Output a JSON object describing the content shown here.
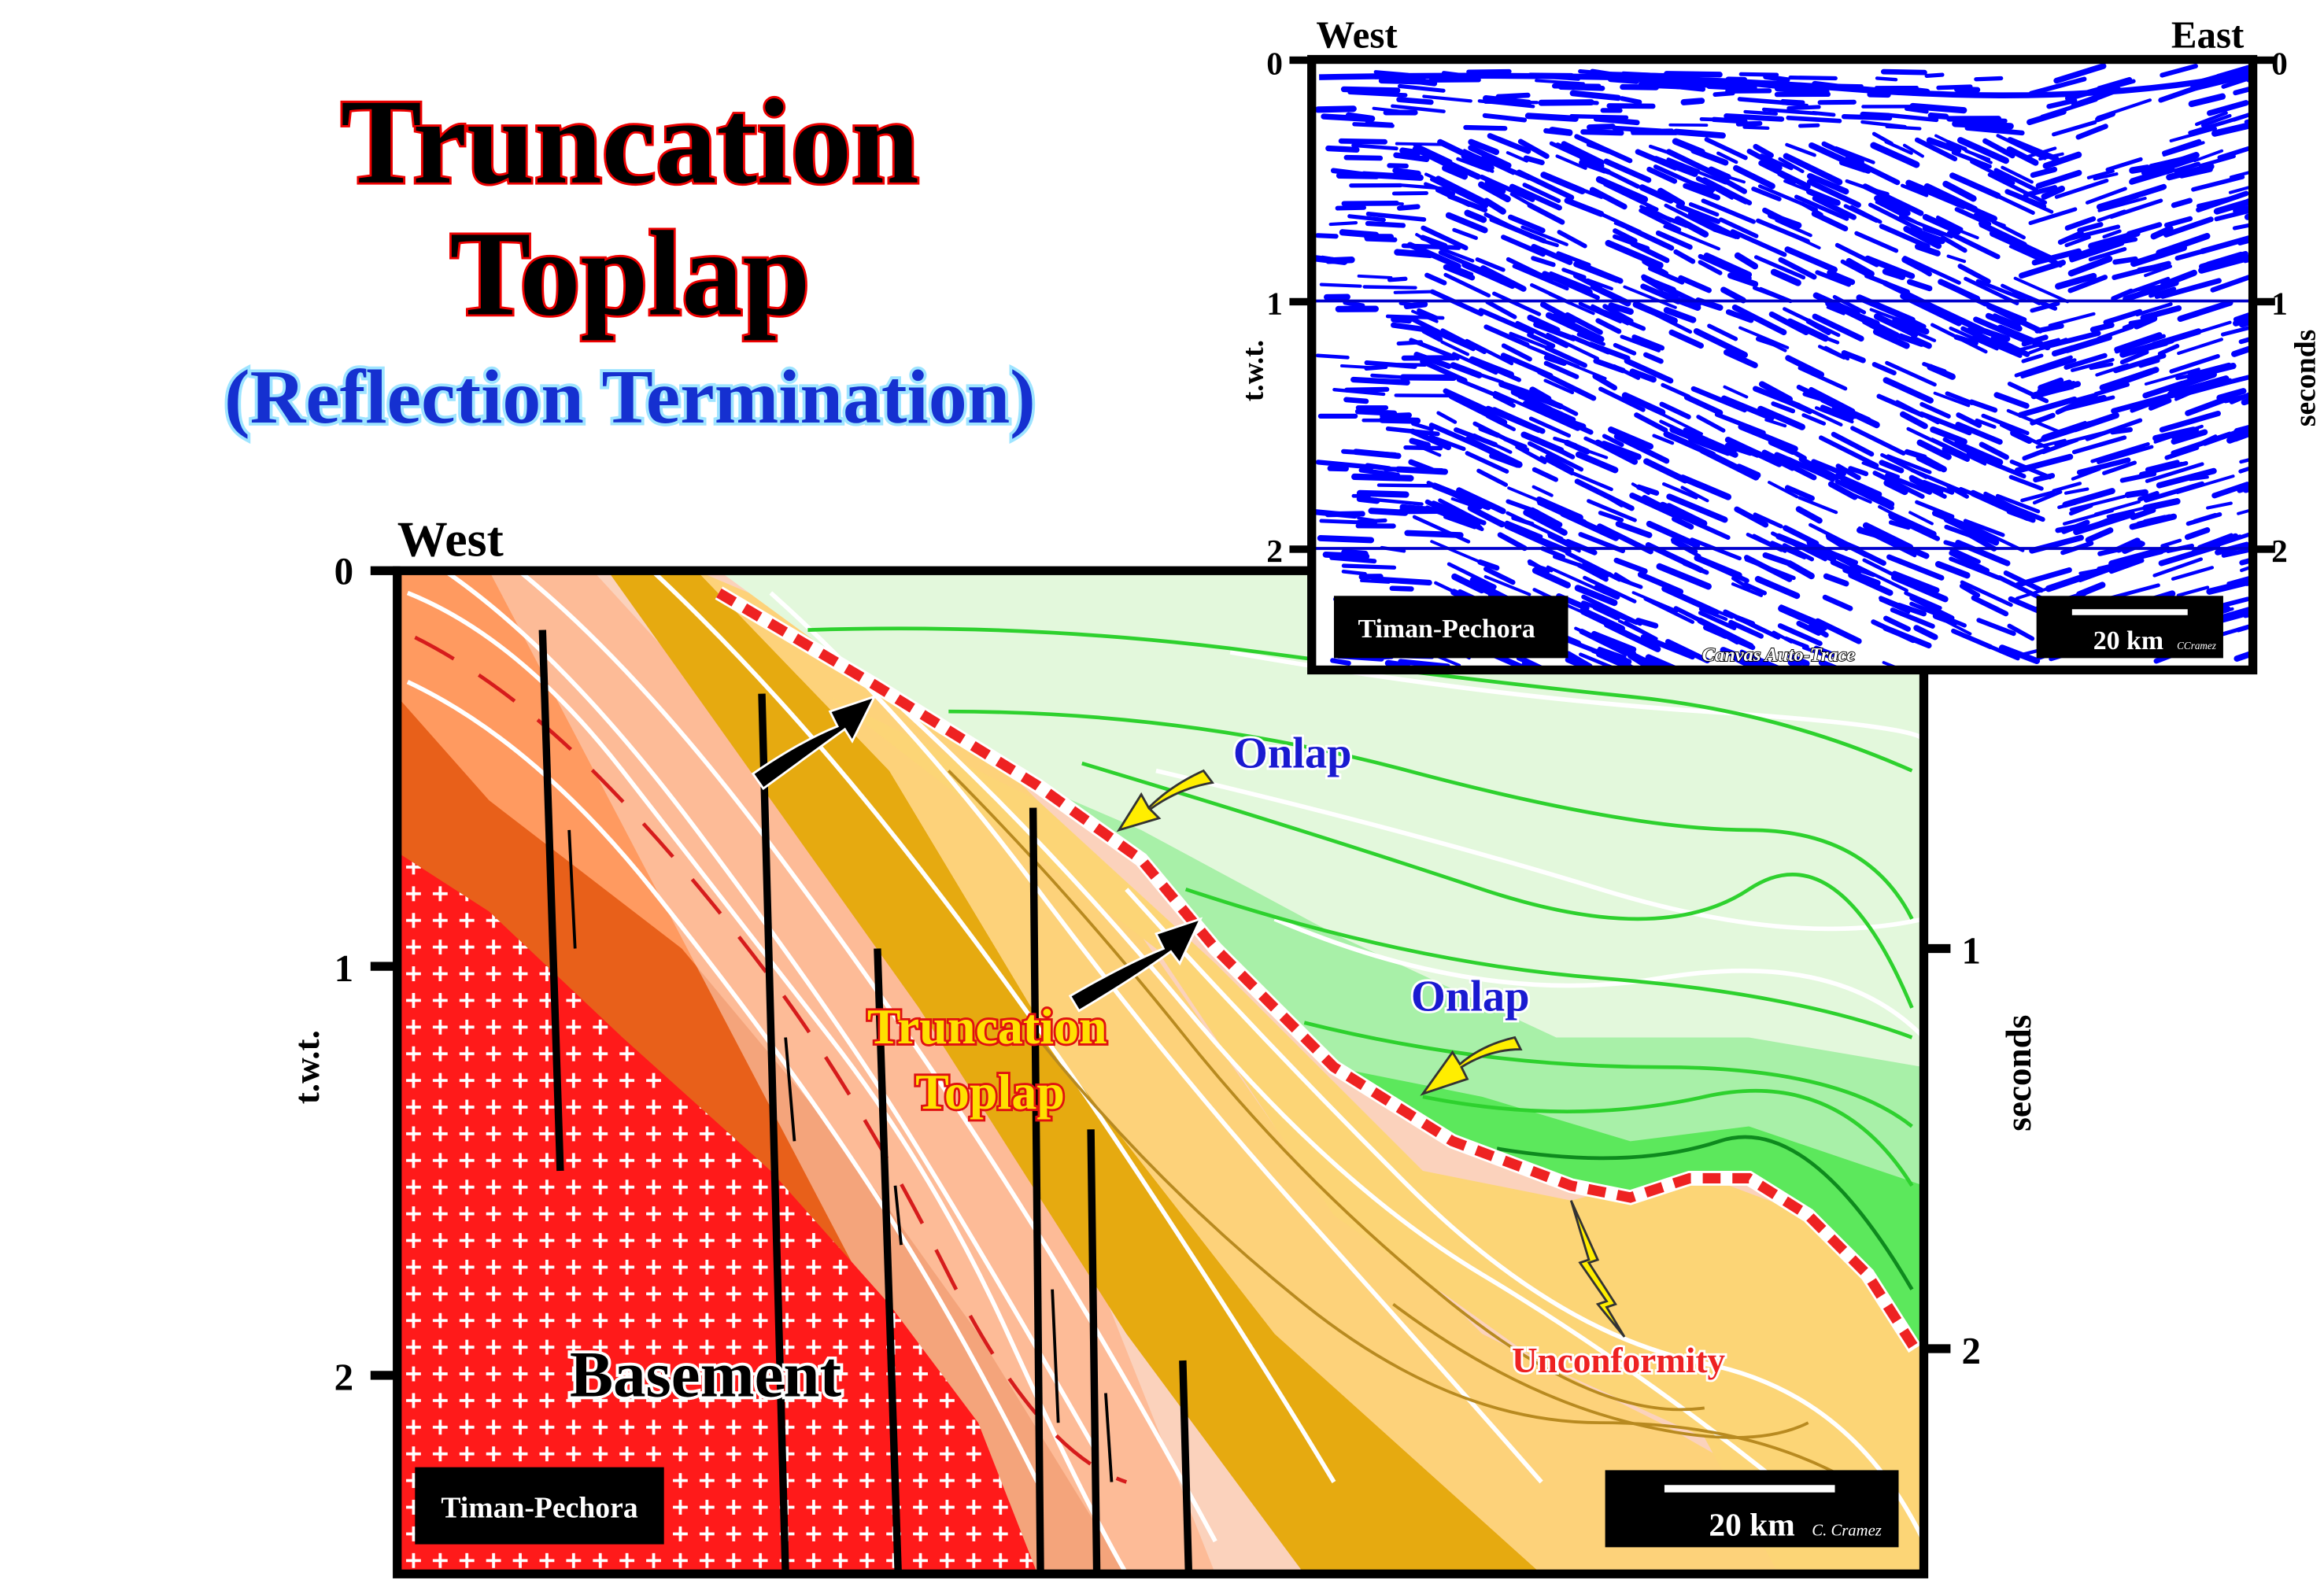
{
  "title": {
    "line1": "Truncation",
    "line2": "Toplap",
    "subtitle": "(Reflection Termination)"
  },
  "main_section": {
    "west_label": "West",
    "y_axis_label": "t.w.t.",
    "y_axis_right_label": "seconds",
    "left_ticks": [
      "0",
      "1",
      "2"
    ],
    "right_ticks": [
      "1",
      "2"
    ],
    "labels": {
      "onlap_1": "Onlap",
      "onlap_2": "Onlap",
      "truncation_1": "Truncation",
      "truncation_2": "Toplap",
      "unconformity": "Unconformity",
      "basement": "Basement"
    },
    "location_box": "Timan-Pechora",
    "scale": "20 km",
    "credit": "C. Cramez"
  },
  "seismic_inset": {
    "west_label": "West",
    "east_label": "East",
    "y_axis_label": "t.w.t.",
    "y_axis_right_label": "seconds",
    "left_ticks": [
      "0",
      "1",
      "2"
    ],
    "right_ticks": [
      "0",
      "1",
      "2"
    ],
    "location_box": "Timan-Pechora",
    "watermark": "Canvas Auto-Trace",
    "scale": "20 km",
    "credit": "CCramez",
    "trace_color": "#0000ff"
  },
  "colors": {
    "unconformity": "#ee2222",
    "onlap_text": "#1a1ad0",
    "basement": "#ff1a1a",
    "truncation_text": "#ffe000"
  }
}
